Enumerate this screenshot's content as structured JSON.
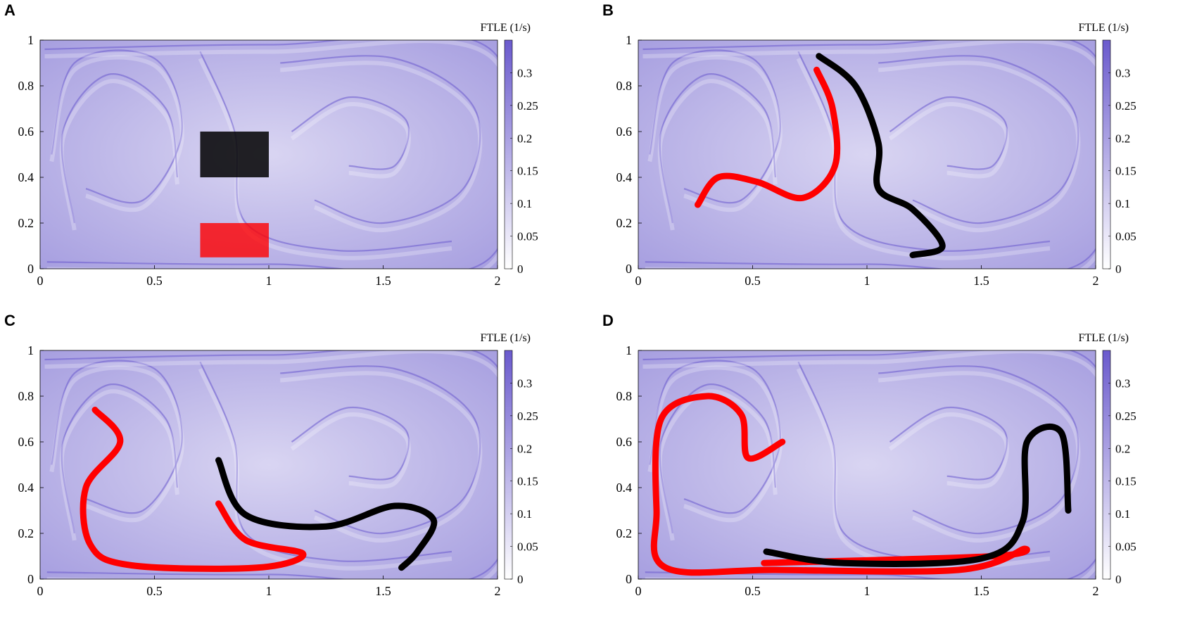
{
  "figure": {
    "colorbar_title": "FTLE (1/s)",
    "colormap": {
      "low": "#ffffff",
      "high": "#6a5acd"
    },
    "tracer_colors": {
      "red": "#ff0000",
      "black": "#000000"
    }
  },
  "chart_data": [
    {
      "panel": "A",
      "type": "heatmap",
      "xlim": [
        0,
        2
      ],
      "ylim": [
        0,
        1
      ],
      "x_ticks": [
        "0",
        "0.5",
        "1",
        "1.5",
        "2"
      ],
      "y_ticks": [
        "0",
        "0.2",
        "0.4",
        "0.6",
        "0.8",
        "1"
      ],
      "colorbar": {
        "label": "FTLE (1/s)",
        "range": [
          0,
          0.35
        ],
        "ticks": [
          "0",
          "0.05",
          "0.1",
          "0.15",
          "0.2",
          "0.25",
          "0.3"
        ]
      },
      "tracers": [
        {
          "color": "black",
          "shape": "rectangle",
          "x": [
            0.7,
            1.0
          ],
          "y": [
            0.4,
            0.6
          ]
        },
        {
          "color": "red",
          "shape": "rectangle",
          "x": [
            0.7,
            1.0
          ],
          "y": [
            0.05,
            0.2
          ]
        }
      ]
    },
    {
      "panel": "B",
      "type": "heatmap",
      "xlim": [
        0,
        2
      ],
      "ylim": [
        0,
        1
      ],
      "x_ticks": [
        "0",
        "0.5",
        "1",
        "1.5",
        "2"
      ],
      "y_ticks": [
        "0",
        "0.2",
        "0.4",
        "0.6",
        "0.8",
        "1"
      ],
      "colorbar": {
        "label": "FTLE (1/s)",
        "range": [
          0,
          0.35
        ],
        "ticks": [
          "0",
          "0.05",
          "0.1",
          "0.15",
          "0.2",
          "0.25",
          "0.3"
        ]
      },
      "tracers": [
        {
          "color": "red",
          "shape": "filament",
          "points": [
            [
              0.26,
              0.28
            ],
            [
              0.35,
              0.4
            ],
            [
              0.52,
              0.38
            ],
            [
              0.72,
              0.31
            ],
            [
              0.86,
              0.45
            ],
            [
              0.85,
              0.7
            ],
            [
              0.78,
              0.87
            ]
          ]
        },
        {
          "color": "black",
          "shape": "filament",
          "points": [
            [
              0.79,
              0.93
            ],
            [
              0.95,
              0.8
            ],
            [
              1.05,
              0.55
            ],
            [
              1.05,
              0.35
            ],
            [
              1.2,
              0.26
            ],
            [
              1.33,
              0.1
            ],
            [
              1.2,
              0.06
            ]
          ]
        }
      ]
    },
    {
      "panel": "C",
      "type": "heatmap",
      "xlim": [
        0,
        2
      ],
      "ylim": [
        0,
        1
      ],
      "x_ticks": [
        "0",
        "0.5",
        "1",
        "1.5",
        "2"
      ],
      "y_ticks": [
        "0",
        "0.2",
        "0.4",
        "0.6",
        "0.8",
        "1"
      ],
      "colorbar": {
        "label": "FTLE (1/s)",
        "range": [
          0,
          0.35
        ],
        "ticks": [
          "0",
          "0.05",
          "0.1",
          "0.15",
          "0.2",
          "0.25",
          "0.3"
        ]
      },
      "tracers": [
        {
          "color": "red",
          "shape": "filament",
          "points": [
            [
              0.24,
              0.74
            ],
            [
              0.35,
              0.6
            ],
            [
              0.2,
              0.4
            ],
            [
              0.22,
              0.15
            ],
            [
              0.4,
              0.06
            ],
            [
              0.95,
              0.05
            ],
            [
              1.15,
              0.11
            ],
            [
              0.9,
              0.17
            ],
            [
              0.78,
              0.33
            ]
          ]
        },
        {
          "color": "black",
          "shape": "filament",
          "points": [
            [
              0.78,
              0.52
            ],
            [
              0.9,
              0.28
            ],
            [
              1.25,
              0.23
            ],
            [
              1.55,
              0.32
            ],
            [
              1.72,
              0.26
            ],
            [
              1.65,
              0.12
            ],
            [
              1.58,
              0.05
            ]
          ]
        }
      ]
    },
    {
      "panel": "D",
      "type": "heatmap",
      "xlim": [
        0,
        2
      ],
      "ylim": [
        0,
        1
      ],
      "x_ticks": [
        "0",
        "0.5",
        "1",
        "1.5",
        "2"
      ],
      "y_ticks": [
        "0",
        "0.2",
        "0.4",
        "0.6",
        "0.8",
        "1"
      ],
      "colorbar": {
        "label": "FTLE (1/s)",
        "range": [
          0,
          0.35
        ],
        "ticks": [
          "0",
          "0.05",
          "0.1",
          "0.15",
          "0.2",
          "0.25",
          "0.3"
        ]
      },
      "tracers": [
        {
          "color": "red",
          "shape": "filament",
          "points": [
            [
              0.63,
              0.6
            ],
            [
              0.48,
              0.53
            ],
            [
              0.45,
              0.72
            ],
            [
              0.3,
              0.8
            ],
            [
              0.1,
              0.7
            ],
            [
              0.08,
              0.3
            ],
            [
              0.12,
              0.05
            ],
            [
              0.6,
              0.04
            ],
            [
              1.4,
              0.04
            ],
            [
              1.68,
              0.13
            ],
            [
              1.55,
              0.1
            ],
            [
              0.55,
              0.07
            ]
          ]
        },
        {
          "color": "black",
          "shape": "filament",
          "points": [
            [
              0.56,
              0.12
            ],
            [
              0.9,
              0.07
            ],
            [
              1.5,
              0.09
            ],
            [
              1.68,
              0.25
            ],
            [
              1.7,
              0.6
            ],
            [
              1.85,
              0.64
            ],
            [
              1.88,
              0.3
            ]
          ]
        }
      ]
    }
  ]
}
